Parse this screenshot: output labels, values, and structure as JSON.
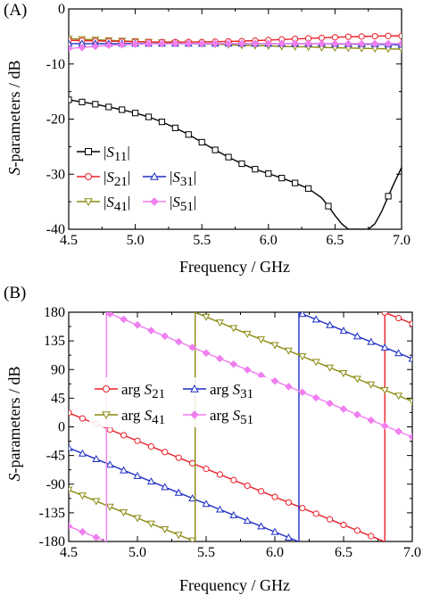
{
  "colors": {
    "s11": "#000000",
    "s21": "#e8202a",
    "s31": "#1f2fc4",
    "s41": "#8a8a10",
    "s51": "#f07ef0",
    "axis": "#000000",
    "background": "#ffffff"
  },
  "chart_data": [
    {
      "panel_label": "(A)",
      "type": "line",
      "xlabel": "Frequency / GHz",
      "ylabel_italic": "S",
      "ylabel_rest": "-parameters / dB",
      "xlim": [
        4.5,
        7.0
      ],
      "ylim": [
        -40,
        0
      ],
      "xticks": [
        4.5,
        5.0,
        5.5,
        6.0,
        6.5,
        7.0
      ],
      "xtick_labels": [
        "4.5",
        "5.0",
        "5.5",
        "6.0",
        "6.5",
        "7.0"
      ],
      "yticks": [
        -40,
        -30,
        -20,
        -10,
        0
      ],
      "ytick_labels": [
        "-40",
        "-30",
        "-20",
        "-10",
        "0"
      ],
      "grid": false,
      "legend": [
        {
          "label_prefix": "|",
          "symbol": "S",
          "subscript": "11",
          "label_suffix": "|",
          "series": "s11"
        },
        {
          "label_prefix": "|",
          "symbol": "S",
          "subscript": "21",
          "label_suffix": "|",
          "series": "s21"
        },
        {
          "label_prefix": "|",
          "symbol": "S",
          "subscript": "31",
          "label_suffix": "|",
          "series": "s31"
        },
        {
          "label_prefix": "|",
          "symbol": "S",
          "subscript": "41",
          "label_suffix": "|",
          "series": "s41"
        },
        {
          "label_prefix": "|",
          "symbol": "S",
          "subscript": "51",
          "label_suffix": "|",
          "series": "s51"
        }
      ],
      "series": [
        {
          "key": "s11",
          "marker": "square",
          "x": [
            4.5,
            4.6,
            4.7,
            4.8,
            4.9,
            5.0,
            5.1,
            5.2,
            5.3,
            5.4,
            5.5,
            5.6,
            5.7,
            5.8,
            5.9,
            6.0,
            6.1,
            6.2,
            6.3,
            6.4,
            6.45,
            6.5,
            6.55,
            6.6,
            6.65,
            6.7,
            6.75,
            6.8,
            6.85,
            6.9,
            6.95,
            7.0
          ],
          "y": [
            -16.5,
            -16.9,
            -17.3,
            -17.8,
            -18.3,
            -18.9,
            -19.6,
            -20.5,
            -21.6,
            -22.8,
            -24.2,
            -25.6,
            -26.9,
            -28.1,
            -29.1,
            -29.9,
            -30.7,
            -31.6,
            -32.6,
            -34.3,
            -35.8,
            -37.5,
            -39.0,
            -40.0,
            -40.0,
            -40.0,
            -40.0,
            -39.0,
            -36.8,
            -34.0,
            -31.3,
            -28.8
          ],
          "markers_x": [
            4.5,
            4.6,
            4.7,
            4.8,
            4.9,
            5.0,
            5.1,
            5.2,
            5.3,
            5.4,
            5.5,
            5.6,
            5.7,
            5.8,
            5.9,
            6.0,
            6.1,
            6.2,
            6.3,
            6.45,
            6.9
          ]
        },
        {
          "key": "s21",
          "marker": "circle",
          "x": [
            4.5,
            4.6,
            4.7,
            4.8,
            4.9,
            5.0,
            5.1,
            5.2,
            5.3,
            5.4,
            5.5,
            5.6,
            5.7,
            5.8,
            5.9,
            6.0,
            6.1,
            6.2,
            6.3,
            6.4,
            6.5,
            6.6,
            6.7,
            6.8,
            6.9,
            7.0
          ],
          "y": [
            -5.7,
            -5.75,
            -5.8,
            -5.85,
            -5.9,
            -5.95,
            -6.0,
            -6.0,
            -6.0,
            -6.0,
            -6.0,
            -5.95,
            -5.9,
            -5.85,
            -5.75,
            -5.65,
            -5.55,
            -5.45,
            -5.35,
            -5.25,
            -5.15,
            -5.05,
            -5.0,
            -4.95,
            -4.9,
            -4.9
          ]
        },
        {
          "key": "s31",
          "marker": "triangle-up",
          "x": [
            4.5,
            4.6,
            4.7,
            4.8,
            4.9,
            5.0,
            5.1,
            5.2,
            5.3,
            5.4,
            5.5,
            5.6,
            5.7,
            5.8,
            5.9,
            6.0,
            6.1,
            6.2,
            6.3,
            6.4,
            6.5,
            6.6,
            6.7,
            6.8,
            6.9,
            7.0
          ],
          "y": [
            -6.3,
            -6.3,
            -6.3,
            -6.3,
            -6.3,
            -6.3,
            -6.3,
            -6.3,
            -6.3,
            -6.3,
            -6.3,
            -6.3,
            -6.3,
            -6.3,
            -6.3,
            -6.3,
            -6.3,
            -6.3,
            -6.3,
            -6.3,
            -6.35,
            -6.35,
            -6.4,
            -6.4,
            -6.45,
            -6.5
          ]
        },
        {
          "key": "s41",
          "marker": "triangle-down",
          "x": [
            4.5,
            4.6,
            4.7,
            4.8,
            4.9,
            5.0,
            5.1,
            5.2,
            5.3,
            5.4,
            5.5,
            5.6,
            5.7,
            5.8,
            5.9,
            6.0,
            6.1,
            6.2,
            6.3,
            6.4,
            6.5,
            6.6,
            6.7,
            6.8,
            6.9,
            7.0
          ],
          "y": [
            -5.4,
            -5.5,
            -5.6,
            -5.7,
            -5.8,
            -5.9,
            -6.0,
            -6.1,
            -6.2,
            -6.3,
            -6.35,
            -6.4,
            -6.5,
            -6.6,
            -6.65,
            -6.7,
            -6.8,
            -6.85,
            -6.9,
            -7.0,
            -7.05,
            -7.1,
            -7.15,
            -7.2,
            -7.25,
            -7.3
          ]
        },
        {
          "key": "s51",
          "marker": "diamond",
          "x": [
            4.5,
            4.6,
            4.7,
            4.8,
            4.9,
            5.0,
            5.1,
            5.2,
            5.3,
            5.4,
            5.5,
            5.6,
            5.7,
            5.8,
            5.9,
            6.0,
            6.1,
            6.2,
            6.3,
            6.4,
            6.5,
            6.6,
            6.7,
            6.8,
            6.9,
            7.0
          ],
          "y": [
            -7.2,
            -7.0,
            -6.8,
            -6.6,
            -6.5,
            -6.4,
            -6.35,
            -6.3,
            -6.3,
            -6.3,
            -6.3,
            -6.3,
            -6.3,
            -6.3,
            -6.3,
            -6.3,
            -6.3,
            -6.3,
            -6.3,
            -6.3,
            -6.3,
            -6.3,
            -6.3,
            -6.3,
            -6.3,
            -6.3
          ]
        }
      ]
    },
    {
      "panel_label": "(B)",
      "type": "line",
      "xlabel": "Frequency / GHz",
      "ylabel_italic": "S",
      "ylabel_rest": "-parameters / dB",
      "xlim": [
        4.5,
        7.0
      ],
      "ylim": [
        -180,
        180
      ],
      "xticks": [
        4.5,
        5.0,
        5.5,
        6.0,
        6.5,
        7.0
      ],
      "xtick_labels": [
        "4.5",
        "5.0",
        "5.5",
        "6.0",
        "6.5",
        "7.0"
      ],
      "yticks": [
        -180,
        -135,
        -90,
        -45,
        0,
        45,
        90,
        135,
        180
      ],
      "ytick_labels": [
        "-180",
        "-135",
        "-90",
        "-45",
        "0",
        "45",
        "90",
        "135",
        "180"
      ],
      "grid": false,
      "legend": [
        {
          "label_prefix": "arg ",
          "symbol": "S",
          "subscript": "21",
          "label_suffix": "",
          "series": "s21"
        },
        {
          "label_prefix": "arg ",
          "symbol": "S",
          "subscript": "31",
          "label_suffix": "",
          "series": "s31"
        },
        {
          "label_prefix": "arg ",
          "symbol": "S",
          "subscript": "41",
          "label_suffix": "",
          "series": "s41"
        },
        {
          "label_prefix": "arg ",
          "symbol": "S",
          "subscript": "51",
          "label_suffix": "",
          "series": "s51"
        }
      ],
      "series": [
        {
          "key": "s21",
          "marker": "circle",
          "x": [
            4.5,
            7.0
          ],
          "y": [
            22,
            -198
          ],
          "wrap": true,
          "marker_step": 0.1
        },
        {
          "key": "s31",
          "marker": "triangle-up",
          "x": [
            4.5,
            7.0
          ],
          "y": [
            -33,
            -253
          ],
          "wrap": true,
          "marker_step": 0.1
        },
        {
          "key": "s41",
          "marker": "triangle-down",
          "x": [
            4.5,
            7.0
          ],
          "y": [
            -99,
            -320
          ],
          "wrap": true,
          "marker_step": 0.1
        },
        {
          "key": "s51",
          "marker": "diamond",
          "x": [
            4.5,
            7.0
          ],
          "y": [
            -156,
            -376
          ],
          "wrap": true,
          "marker_step": 0.1
        }
      ]
    }
  ]
}
